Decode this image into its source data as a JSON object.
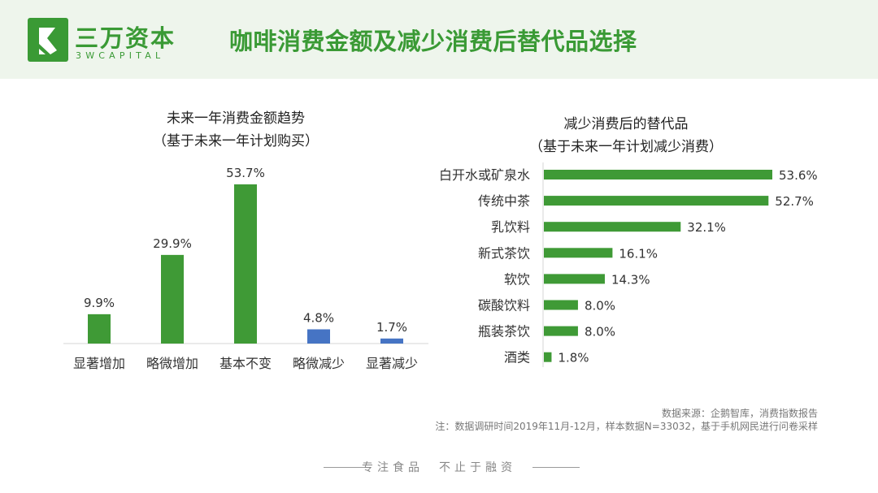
{
  "header": {
    "brand_cn": "三万资本",
    "brand_en": "3WCAPITAL",
    "title": "咖啡消费金额及减少消费后替代品选择",
    "brand_color": "#3a9a35",
    "logo_icon": "sw-capital-logo-icon"
  },
  "chart_data": [
    {
      "type": "bar",
      "title": "未来一年消费金额趋势",
      "subtitle": "（基于未来一年计划购买）",
      "categories": [
        "显著增加",
        "略微增加",
        "基本不变",
        "略微减少",
        "显著减少"
      ],
      "values": [
        9.9,
        29.9,
        53.7,
        4.8,
        1.7
      ],
      "value_labels": [
        "9.9%",
        "29.9%",
        "53.7%",
        "4.8%",
        "1.7%"
      ],
      "colors": [
        "#3f9a36",
        "#3f9a36",
        "#3f9a36",
        "#4674c4",
        "#4674c4"
      ],
      "ylim": [
        0,
        53.7
      ],
      "grid": false,
      "legend": "none"
    },
    {
      "type": "bar",
      "orientation": "horizontal",
      "title": "减少消费后的替代品",
      "subtitle": "（基于未来一年计划减少消费）",
      "categories": [
        "白开水或矿泉水",
        "传统中茶",
        "乳饮料",
        "新式茶饮",
        "软饮",
        "碳酸饮料",
        "瓶装茶饮",
        "酒类"
      ],
      "values": [
        53.6,
        52.7,
        32.1,
        16.1,
        14.3,
        8.0,
        8.0,
        1.8
      ],
      "value_labels": [
        "53.6%",
        "52.7%",
        "32.1%",
        "16.1%",
        "14.3%",
        "8.0%",
        "8.0%",
        "1.8%"
      ],
      "colors": [
        "#3f9a36"
      ],
      "xlim": [
        0,
        53.6
      ],
      "grid": false,
      "legend": "none"
    }
  ],
  "source": {
    "line1": "数据来源：企鹅智库，消费指数报告",
    "line2": "注：数据调研时间2019年11月-12月，样本数据N=33032，基于手机网民进行问卷采样"
  },
  "footer": {
    "slogan": "专注食品　不止于融资"
  }
}
